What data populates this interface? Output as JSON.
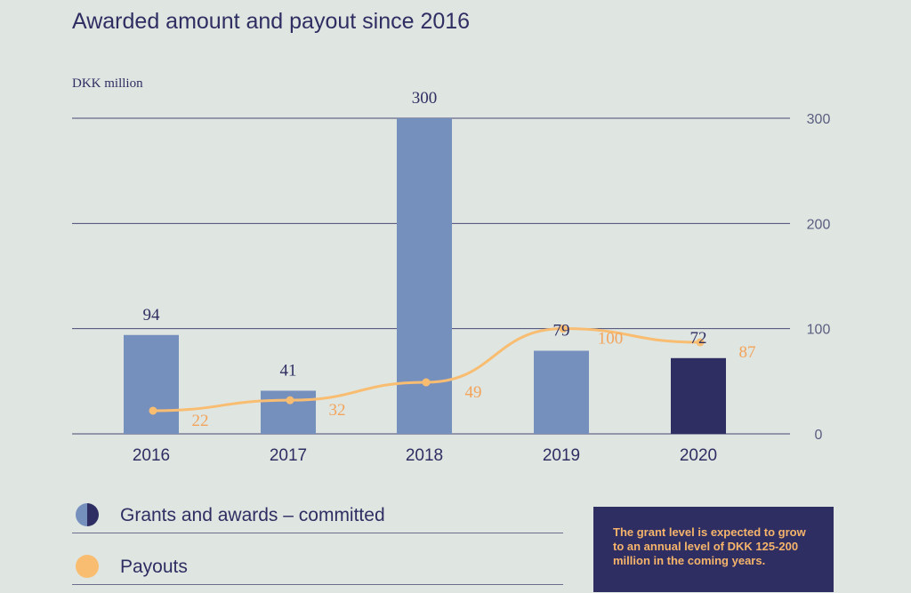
{
  "title": "Awarded amount and payout since 2016",
  "unit_label": "DKK million",
  "colors": {
    "bar": "#7690be",
    "bar_highlight": "#2e2e63",
    "line": "#f9bd72",
    "line_label": "#f3a35a",
    "text": "#2e2e63",
    "grid": "#2e2e63"
  },
  "chart_data": {
    "type": "bar",
    "categories": [
      "2016",
      "2017",
      "2018",
      "2019",
      "2020"
    ],
    "series": [
      {
        "name": "Grants and awards – committed",
        "type": "bar",
        "values": [
          94,
          41,
          300,
          79,
          72
        ],
        "highlight_index": 4
      },
      {
        "name": "Payouts",
        "type": "line",
        "values": [
          22,
          32,
          49,
          100,
          87
        ]
      }
    ],
    "y_ticks": [
      "0",
      "100",
      "200",
      "300"
    ],
    "ylim": [
      0,
      300
    ],
    "grid": true
  },
  "legend": [
    {
      "label": "Grants and awards – committed",
      "icon": "half-circle-icon"
    },
    {
      "label": "Payouts",
      "icon": "circle-icon"
    }
  ],
  "note": "The grant level is expected to grow to an annual level of DKK 125-200 million in the coming years."
}
